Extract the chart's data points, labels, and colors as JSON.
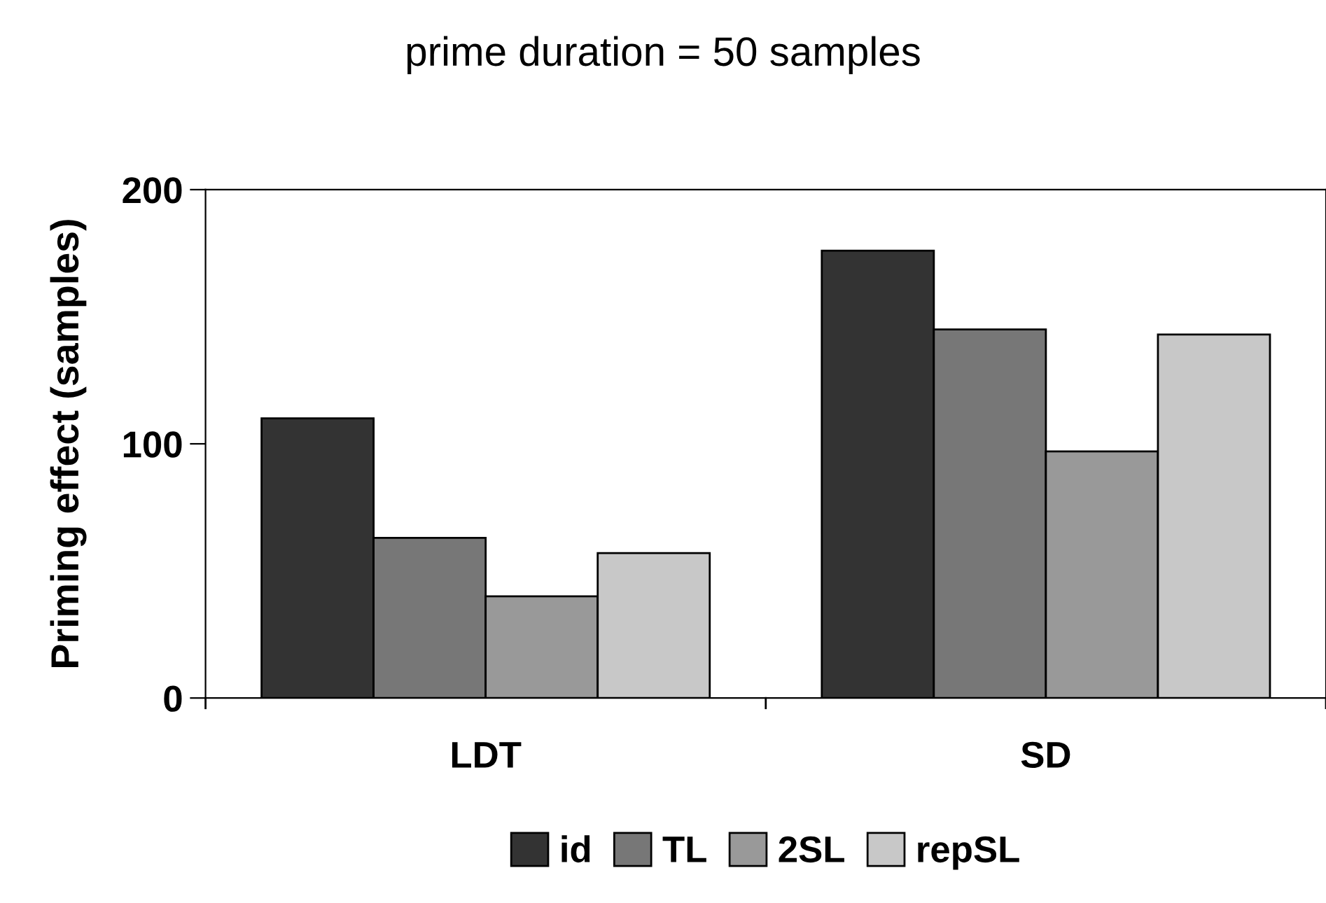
{
  "chart_data": {
    "type": "bar",
    "title": "prime duration = 50 samples",
    "ylabel": "Priming effect (samples)",
    "categories": [
      "LDT",
      "SD"
    ],
    "series": [
      {
        "name": "id",
        "color": "#333333",
        "values": [
          110,
          176
        ]
      },
      {
        "name": "TL",
        "color": "#777777",
        "values": [
          63,
          145
        ]
      },
      {
        "name": "2SL",
        "color": "#999999",
        "values": [
          40,
          97
        ]
      },
      {
        "name": "repSL",
        "color": "#c8c8c8",
        "values": [
          57,
          143
        ]
      }
    ],
    "ylim": [
      0,
      200
    ],
    "yticks": [
      0,
      100,
      200
    ],
    "grid": false,
    "legend": "bottom"
  }
}
